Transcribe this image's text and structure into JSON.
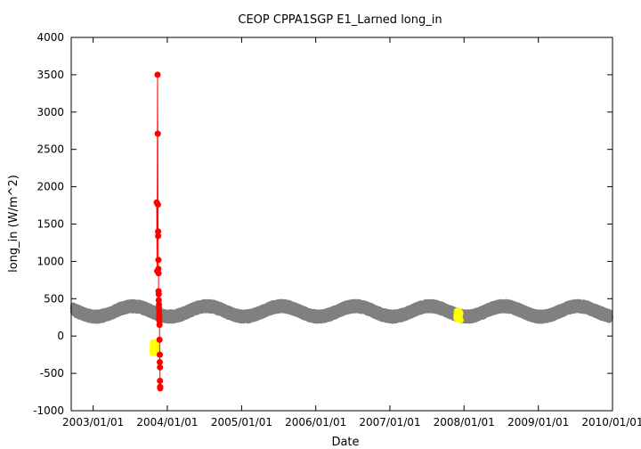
{
  "chart_data": {
    "type": "scatter",
    "title": "CEOP CPPA1SGP E1_Larned  long_in",
    "xlabel": "Date",
    "ylabel": "long_in (W/m^2)",
    "xlim": [
      "2002/09/15",
      "2010/01/01"
    ],
    "ylim": [
      -1000,
      4000
    ],
    "x_ticks": [
      "2003/01/01",
      "2004/01/01",
      "2005/01/01",
      "2006/01/01",
      "2007/01/01",
      "2008/01/01",
      "2009/01/01",
      "2010/01/01"
    ],
    "y_ticks": [
      -1000,
      -500,
      0,
      500,
      1000,
      1500,
      2000,
      2500,
      3000,
      3500,
      4000
    ],
    "grid": false,
    "series": [
      {
        "color": "#808080",
        "style": "points",
        "date_range": [
          "2002/09/25",
          "2009/12/20"
        ],
        "seasonal_mean_low": 260,
        "seasonal_mean_high": 400,
        "peak_month": "July",
        "spread": 55
      },
      {
        "color": "#ff0000",
        "style": "line+points",
        "points": [
          {
            "x": "2003/11/10",
            "y": 1790
          },
          {
            "x": "2003/11/12",
            "y": 870
          },
          {
            "x": "2003/11/14",
            "y": 3500
          },
          {
            "x": "2003/11/15",
            "y": 2710
          },
          {
            "x": "2003/11/16",
            "y": 1760
          },
          {
            "x": "2003/11/17",
            "y": 1400
          },
          {
            "x": "2003/11/17",
            "y": 1340
          },
          {
            "x": "2003/11/18",
            "y": 1020
          },
          {
            "x": "2003/11/18",
            "y": 900
          },
          {
            "x": "2003/11/19",
            "y": 840
          },
          {
            "x": "2003/11/19",
            "y": 600
          },
          {
            "x": "2003/11/20",
            "y": 560
          },
          {
            "x": "2003/11/20",
            "y": 480
          },
          {
            "x": "2003/11/21",
            "y": 420
          },
          {
            "x": "2003/11/21",
            "y": 380
          },
          {
            "x": "2003/11/22",
            "y": 330
          },
          {
            "x": "2003/11/22",
            "y": 280
          },
          {
            "x": "2003/11/23",
            "y": 240
          },
          {
            "x": "2003/11/23",
            "y": 200
          },
          {
            "x": "2003/11/24",
            "y": 150
          },
          {
            "x": "2003/11/24",
            "y": -50
          },
          {
            "x": "2003/11/25",
            "y": -250
          },
          {
            "x": "2003/11/25",
            "y": -350
          },
          {
            "x": "2003/11/26",
            "y": -420
          },
          {
            "x": "2003/11/26",
            "y": -600
          },
          {
            "x": "2003/11/27",
            "y": -680
          },
          {
            "x": "2003/11/27",
            "y": -700
          }
        ]
      },
      {
        "color": "#ffff00",
        "style": "points",
        "clusters": [
          {
            "x_range": [
              "2003/10/20",
              "2003/11/10"
            ],
            "y_range": [
              -230,
              -70
            ]
          },
          {
            "x_range": [
              "2007/11/25",
              "2007/12/15"
            ],
            "y_range": [
              210,
              340
            ]
          }
        ]
      }
    ]
  }
}
